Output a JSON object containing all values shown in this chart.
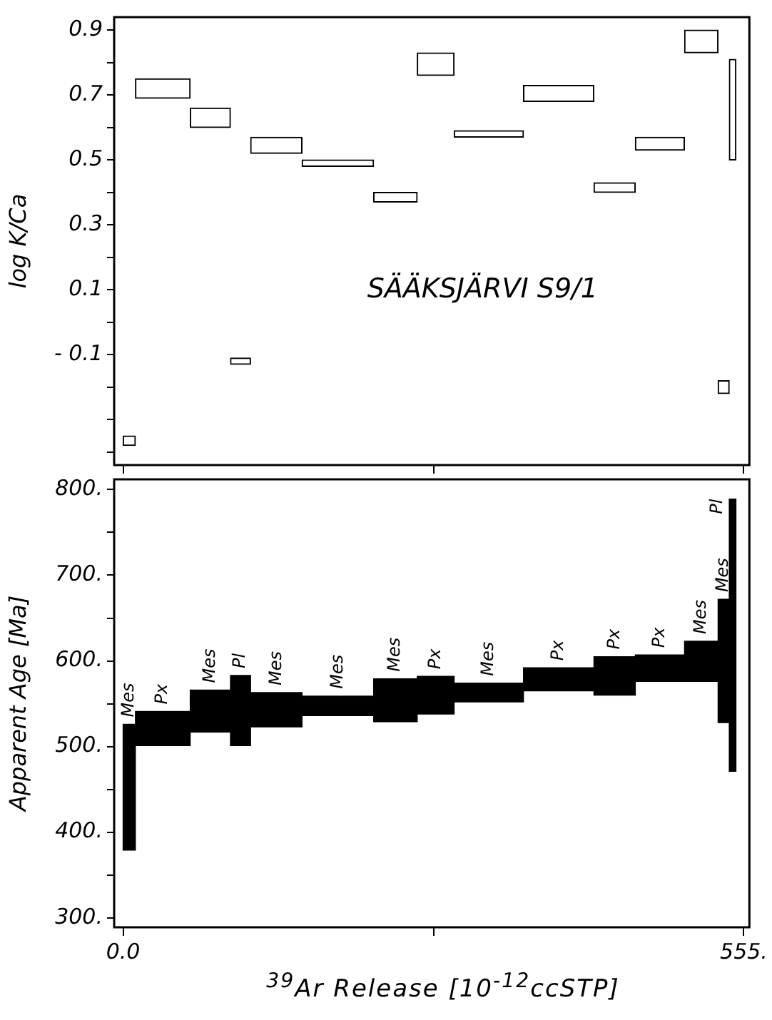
{
  "chart_data": [
    {
      "type": "histogram",
      "title": "SÄÄKSJÄRVI S9/1",
      "ylabel": "log K/Ca",
      "color": "#ffffff",
      "tick_labels": "y",
      "bins": [
        0,
        11,
        60,
        96,
        114,
        160,
        224,
        263,
        296,
        358,
        421,
        458,
        502,
        532,
        542,
        548
      ],
      "base": [
        -0.38,
        0.69,
        0.6,
        -0.13,
        0.52,
        0.48,
        0.37,
        0.76,
        0.57,
        0.68,
        0.4,
        0.53,
        0.83,
        -0.22,
        0.5
      ],
      "values": [
        0.03,
        0.06,
        0.06,
        0.02,
        0.05,
        0.02,
        0.03,
        0.07,
        0.02,
        0.05,
        0.03,
        0.04,
        0.07,
        0.04,
        0.31
      ],
      "xlim": [
        -8,
        560
      ],
      "xticks": [
        {
          "value": 0,
          "label": null
        },
        {
          "value": 277.5,
          "label": null
        },
        {
          "value": 555,
          "label": null
        }
      ],
      "ylim": [
        -0.44,
        0.94
      ],
      "yticks": [
        {
          "value": -0.4,
          "label": null
        },
        {
          "value": -0.3,
          "label": null
        },
        {
          "value": -0.2,
          "label": null
        },
        {
          "value": -0.1,
          "label": "- 0.1"
        },
        {
          "value": 0,
          "label": null
        },
        0.1,
        {
          "value": 0.2,
          "label": null
        },
        0.3,
        {
          "value": 0.4,
          "label": null
        },
        0.5,
        {
          "value": 0.6,
          "label": null
        },
        0.7,
        {
          "value": 0.8,
          "label": null
        },
        0.9
      ]
    },
    {
      "type": "histogram",
      "ylabel": "Apparent Age [Ma]",
      "xlabel": "$^{39}$Ar Release [10$^{-12}$ccSTP]",
      "color": "#000000",
      "bins": [
        0,
        11,
        60,
        96,
        114,
        160,
        224,
        263,
        296,
        358,
        421,
        458,
        502,
        532,
        542,
        548
      ],
      "base": [
        379,
        501,
        517,
        501,
        523,
        536,
        529,
        538,
        552,
        565,
        560,
        576,
        576,
        528,
        471
      ],
      "values": [
        147,
        40,
        49,
        82,
        40,
        23,
        50,
        44,
        22,
        27,
        45,
        31,
        47,
        144,
        318
      ],
      "xlim": [
        -8,
        560
      ],
      "xticks": [
        {
          "value": 0,
          "label": "0.0"
        },
        {
          "value": 277.5,
          "label": null
        },
        {
          "value": 555,
          "label": "555."
        }
      ],
      "ylim": [
        289,
        812
      ],
      "yticks": [
        {
          "value": 300,
          "label": "300."
        },
        {
          "value": 350,
          "label": null
        },
        {
          "value": 400,
          "label": "400."
        },
        {
          "value": 450,
          "label": null
        },
        {
          "value": 500,
          "label": "500."
        },
        {
          "value": 550,
          "label": null
        },
        {
          "value": 600,
          "label": "600."
        },
        {
          "value": 650,
          "label": null
        },
        {
          "value": 700,
          "label": "700."
        },
        {
          "value": 750,
          "label": null
        },
        {
          "value": 800,
          "label": "800."
        }
      ],
      "annotations": [
        "Mes",
        "Px",
        "Mes",
        "Pl",
        "Mes",
        "Mes",
        "Mes",
        "Px",
        "Mes",
        "Px",
        "Px",
        "Px",
        "Mes",
        "Mes",
        "Pl"
      ]
    }
  ]
}
